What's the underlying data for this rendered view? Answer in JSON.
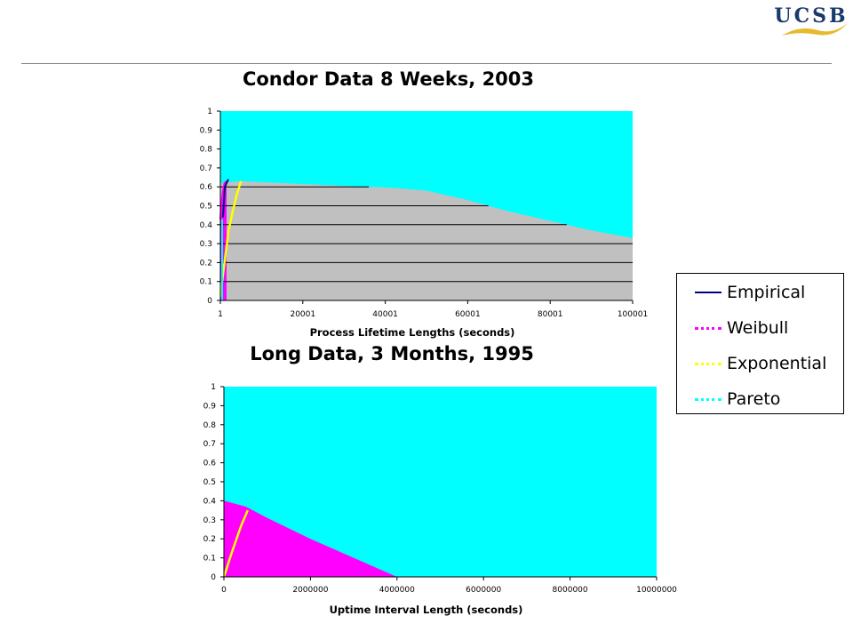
{
  "logo": {
    "text": "UCSB",
    "text_color": "#1a3a6b",
    "wave_color": "#e8b92c"
  },
  "legend": [
    {
      "label": "Empirical",
      "color": "#000080",
      "style": "solid"
    },
    {
      "label": "Weibull",
      "color": "#ff00ff",
      "style": "dotted"
    },
    {
      "label": "Exponential",
      "color": "#ffff00",
      "style": "dotted"
    },
    {
      "label": "Pareto",
      "color": "#00ffff",
      "style": "dotted"
    }
  ],
  "chart_data": [
    {
      "type": "area",
      "title": "Condor Data 8 Weeks, 2003",
      "xlabel": "Process Lifetime Lengths (seconds)",
      "ylabel": "",
      "xlim": [
        1,
        100001
      ],
      "ylim": [
        0,
        1
      ],
      "x_ticks": [
        "1",
        "20001",
        "40001",
        "60001",
        "80001",
        "100001"
      ],
      "y_ticks": [
        "0",
        "0.1",
        "0.2",
        "0.3",
        "0.4",
        "0.5",
        "0.6",
        "0.7",
        "0.8",
        "0.9",
        "1"
      ],
      "plot_background": "#00ffff",
      "gridlines": "horizontal",
      "series": [
        {
          "name": "Pareto",
          "color": "#00ffff",
          "x": [
            1,
            100001
          ],
          "y": [
            1,
            1
          ]
        },
        {
          "name": "Empirical",
          "color": "#c0c0c0",
          "x": [
            1,
            5000,
            10000,
            20000,
            30000,
            42000,
            50000,
            60000,
            70000,
            80000,
            90000,
            100001
          ],
          "y": [
            0.62,
            0.63,
            0.625,
            0.615,
            0.605,
            0.595,
            0.58,
            0.53,
            0.47,
            0.42,
            0.37,
            0.33
          ]
        },
        {
          "name": "Weibull",
          "color": "#ff00ff",
          "x": [
            1,
            200,
            500,
            800,
            1000,
            1500
          ],
          "y": [
            0.43,
            0.5,
            0.56,
            0.6,
            0.62,
            0.63
          ]
        },
        {
          "name": "Exponential",
          "color": "#ffff00",
          "x": [
            1,
            1000,
            2000,
            3000,
            4000,
            5000
          ],
          "y": [
            0.02,
            0.2,
            0.37,
            0.47,
            0.56,
            0.63
          ]
        }
      ]
    },
    {
      "type": "area",
      "title": "Long Data, 3 Months, 1995",
      "xlabel": "Uptime Interval Length (seconds)",
      "ylabel": "",
      "xlim": [
        0,
        10000000
      ],
      "ylim": [
        0,
        1
      ],
      "x_ticks": [
        "0",
        "2000000",
        "4000000",
        "6000000",
        "8000000",
        "10000000"
      ],
      "y_ticks": [
        "0",
        "0.1",
        "0.2",
        "0.3",
        "0.4",
        "0.5",
        "0.6",
        "0.7",
        "0.8",
        "0.9",
        "1"
      ],
      "plot_background": "#00ffff",
      "gridlines": "none",
      "series": [
        {
          "name": "Pareto",
          "color": "#00ffff",
          "x": [
            0,
            10000000
          ],
          "y": [
            1,
            1
          ]
        },
        {
          "name": "Weibull",
          "color": "#ff00ff",
          "x": [
            0,
            500000,
            1000000,
            2000000,
            3000000,
            4000000
          ],
          "y": [
            0.4,
            0.37,
            0.31,
            0.2,
            0.1,
            0.0
          ]
        },
        {
          "name": "Exponential",
          "color": "#ffff00",
          "x": [
            0,
            200000,
            400000,
            550000
          ],
          "y": [
            0.0,
            0.14,
            0.27,
            0.35
          ]
        }
      ]
    }
  ]
}
